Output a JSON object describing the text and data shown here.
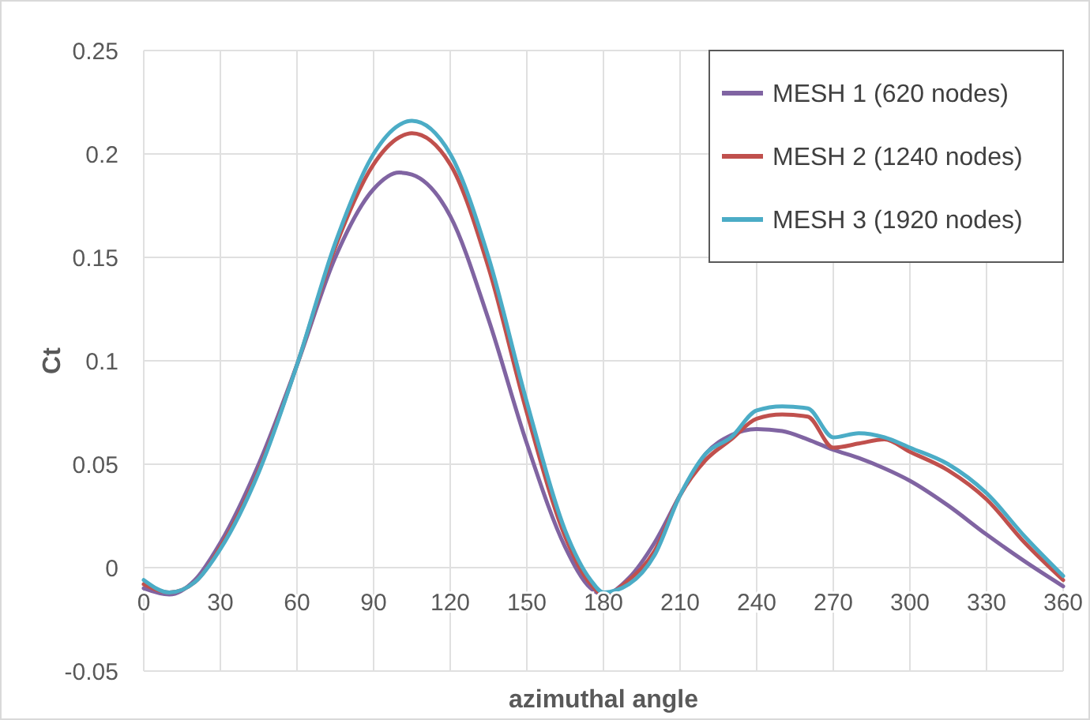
{
  "chart_data": {
    "type": "line",
    "xlabel": "azimuthal angle",
    "ylabel": "Ct",
    "x": [
      0,
      10,
      20,
      30,
      45,
      60,
      75,
      90,
      100,
      105,
      120,
      135,
      150,
      165,
      175,
      180,
      190,
      200,
      210,
      220,
      230,
      240,
      250,
      260,
      270,
      280,
      290,
      300,
      315,
      330,
      345,
      360
    ],
    "series": [
      {
        "name": "MESH 1 (620 nodes)",
        "color": "#8064a2",
        "values": [
          -0.01,
          -0.013,
          -0.006,
          0.012,
          0.05,
          0.098,
          0.15,
          0.183,
          0.191,
          0.19,
          0.17,
          0.12,
          0.06,
          0.01,
          -0.01,
          -0.013,
          -0.005,
          0.012,
          0.035,
          0.055,
          0.064,
          0.067,
          0.066,
          0.062,
          0.057,
          0.053,
          0.048,
          0.042,
          0.03,
          0.016,
          0.003,
          -0.009
        ]
      },
      {
        "name": "MESH 2 (1240 nodes)",
        "color": "#c0504d",
        "values": [
          -0.008,
          -0.012,
          -0.007,
          0.01,
          0.047,
          0.098,
          0.155,
          0.195,
          0.208,
          0.21,
          0.195,
          0.145,
          0.075,
          0.015,
          -0.008,
          -0.013,
          -0.006,
          0.008,
          0.035,
          0.052,
          0.062,
          0.072,
          0.074,
          0.073,
          0.058,
          0.06,
          0.062,
          0.056,
          0.047,
          0.033,
          0.012,
          -0.006
        ]
      },
      {
        "name": "MESH 3 (1920 nodes)",
        "color": "#4bacc6",
        "values": [
          -0.006,
          -0.012,
          -0.007,
          0.009,
          0.046,
          0.098,
          0.157,
          0.2,
          0.214,
          0.216,
          0.2,
          0.15,
          0.08,
          0.018,
          -0.006,
          -0.012,
          -0.008,
          0.006,
          0.035,
          0.055,
          0.063,
          0.076,
          0.078,
          0.077,
          0.063,
          0.065,
          0.063,
          0.058,
          0.05,
          0.036,
          0.015,
          -0.004
        ]
      }
    ],
    "xlim": [
      0,
      360
    ],
    "xticks": [
      0,
      30,
      60,
      90,
      120,
      150,
      180,
      210,
      240,
      270,
      300,
      330,
      360
    ],
    "ylim": [
      -0.05,
      0.25
    ],
    "yticks": [
      -0.05,
      0,
      0.05,
      0.1,
      0.15,
      0.2,
      0.25
    ],
    "grid": true,
    "legend": "top right",
    "marker": "none",
    "line_style": "solid"
  }
}
